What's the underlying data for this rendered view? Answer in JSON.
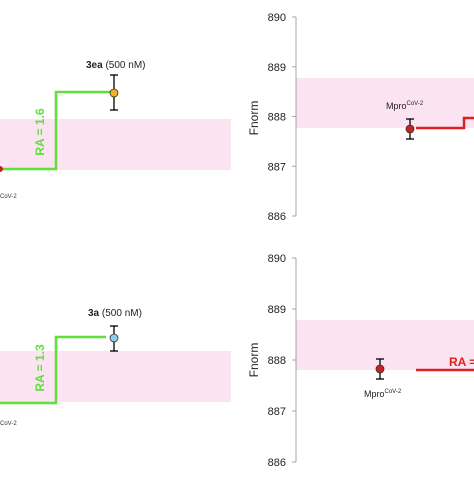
{
  "colors": {
    "band": "#fbe3f2",
    "axis": "#a6a6a6",
    "green_step": "#5fe03a",
    "green_label": "#5fe03a",
    "red_step": "#e0201c",
    "red_point": "#c4241c",
    "gold_point": "#f4b320",
    "blue_point": "#8fcbe8",
    "text": "#222222"
  },
  "chart_data": [
    {
      "type": "scatter",
      "panel": "top-left",
      "label_main": "3ea",
      "label_conc": " (500 nM)",
      "ref_label_super": "CoV-2",
      "ra_label": "RA = 1.6",
      "point_color": "gold"
    },
    {
      "type": "scatter",
      "panel": "top-right",
      "ylabel": "Fnorm",
      "ylim": [
        886,
        890
      ],
      "yticks": [
        "890",
        "889",
        "888",
        "887",
        "886"
      ],
      "band": [
        887.78,
        888.78
      ],
      "ref_label_main": "Mpro",
      "ref_label_super": "CoV-2",
      "ref_value": 887.78,
      "ref_error": 0.2,
      "step_to": 888.0,
      "point_color": "red"
    },
    {
      "type": "scatter",
      "panel": "bottom-left",
      "label_main": "3a",
      "label_conc": " (500 nM)",
      "ref_label_super": "CoV-2",
      "ra_label": "RA = 1.3",
      "point_color": "blue"
    },
    {
      "type": "scatter",
      "panel": "bottom-right",
      "ylabel": "Fnorm",
      "ylim": [
        886,
        890
      ],
      "yticks": [
        "890",
        "889",
        "888",
        "887",
        "886"
      ],
      "band": [
        887.75,
        888.75
      ],
      "ref_label_main": "Mpro",
      "ref_label_super": "CoV-2",
      "ref_value": 887.75,
      "ref_error": 0.2,
      "ra_label": "RA =",
      "point_color": "red"
    }
  ]
}
